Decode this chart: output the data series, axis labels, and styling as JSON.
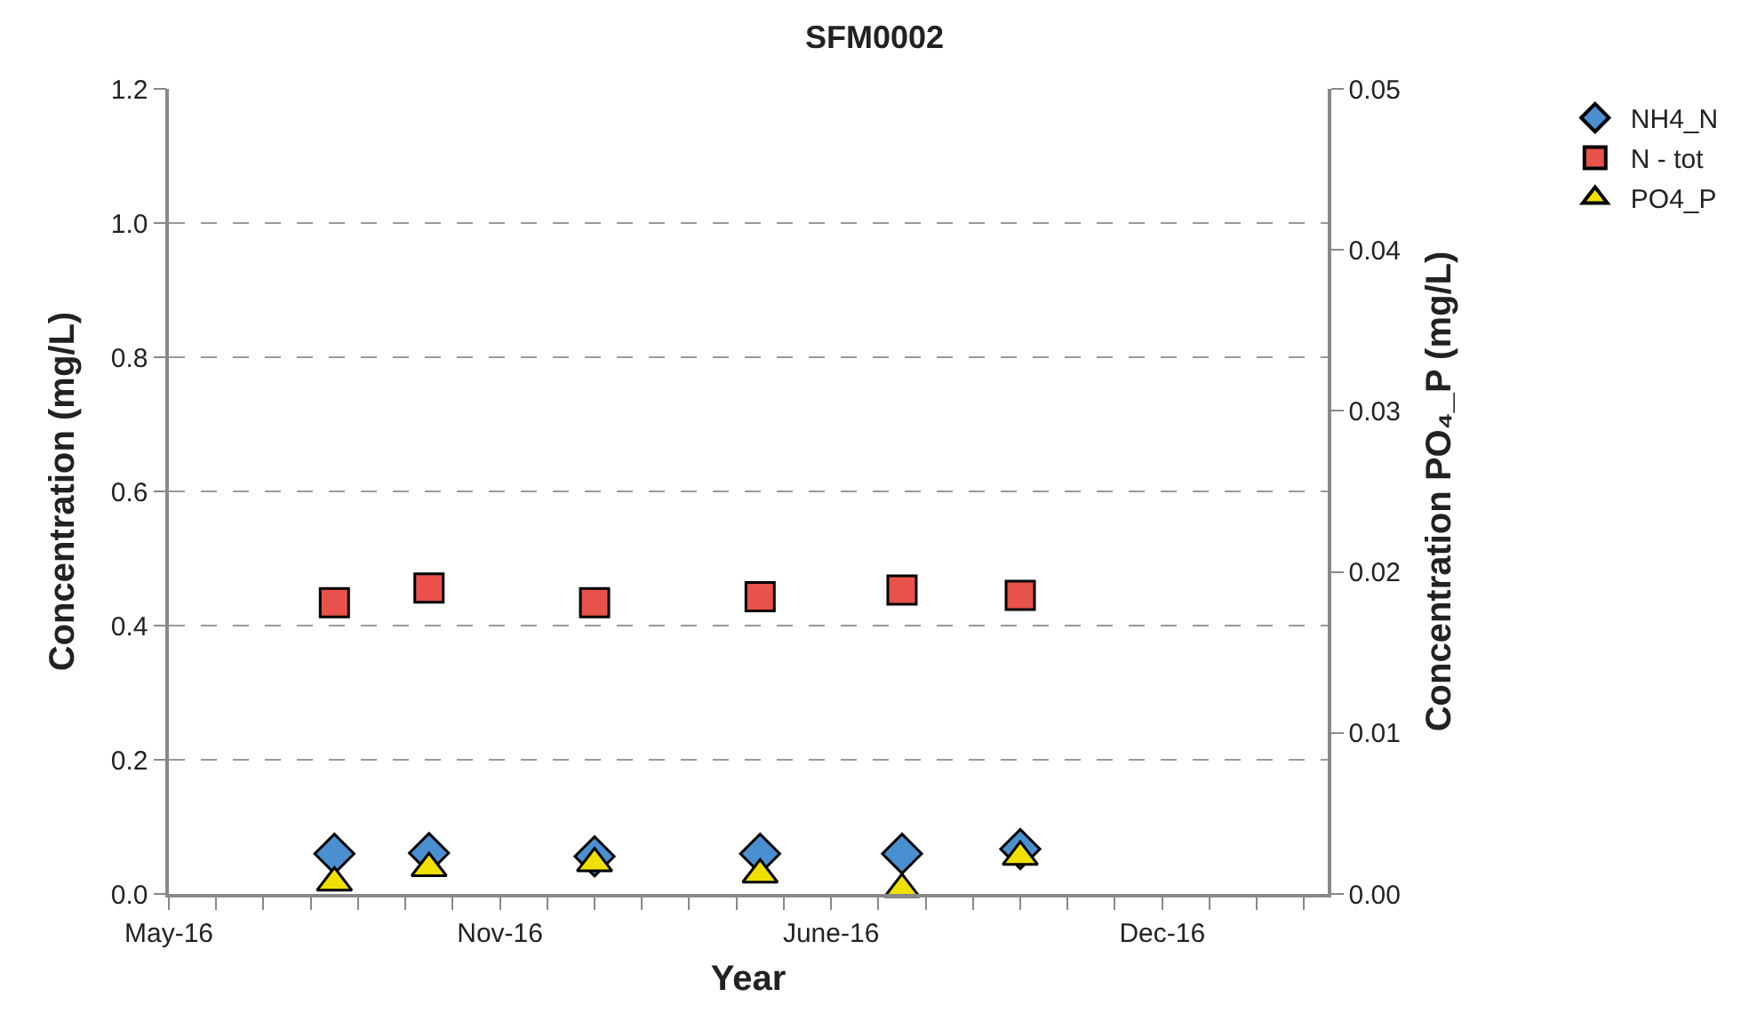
{
  "chart_data": {
    "type": "scatter",
    "title": "SFM0002",
    "xlabel": "Year",
    "ylabel": "Concentration (mg/L)",
    "y2label": "Concentration PO₄_P (mg/L)",
    "categories": [
      "May-16",
      null,
      null,
      null,
      null,
      null,
      null,
      null,
      null,
      null,
      null,
      null,
      null,
      null,
      "Nov-16",
      null,
      null,
      null,
      null,
      null,
      null,
      null,
      null,
      null,
      null,
      null,
      null,
      null,
      "June-16",
      null,
      null,
      null,
      null,
      null,
      null,
      null,
      null,
      null,
      null,
      null,
      null,
      null,
      "Dec-16",
      null,
      null,
      null,
      null,
      null,
      null,
      null
    ],
    "ylim": [
      0,
      1.2
    ],
    "yticks": [
      {
        "value": 0,
        "label": "0.0"
      },
      0.2,
      0.4,
      0.6,
      0.8,
      {
        "value": 1,
        "label": "1.0"
      },
      1.2
    ],
    "y2lim": [
      0,
      0.05
    ],
    "y2ticks": [
      {
        "value": 0,
        "label": "0.00"
      },
      0.01,
      0.02,
      0.03,
      0.04,
      0.05
    ],
    "grid": "y",
    "legend": "top right",
    "series": [
      {
        "name": "NH4_N",
        "color": "#4a90d0",
        "marker": "diamond",
        "values": [
          null,
          null,
          null,
          null,
          null,
          null,
          null,
          0.06,
          null,
          null,
          null,
          0.061,
          null,
          null,
          null,
          null,
          null,
          null,
          0.056,
          null,
          null,
          null,
          null,
          null,
          null,
          0.06,
          null,
          null,
          null,
          null,
          null,
          0.06,
          null,
          null,
          null,
          null,
          0.067,
          null,
          null,
          null,
          null,
          null,
          null,
          null,
          null,
          null,
          null,
          null,
          null,
          null
        ]
      },
      {
        "name": "N - tot",
        "color": "#e8524a",
        "marker": "square",
        "values": [
          null,
          null,
          null,
          null,
          null,
          null,
          null,
          0.434,
          null,
          null,
          null,
          0.456,
          null,
          null,
          null,
          null,
          null,
          null,
          0.434,
          null,
          null,
          null,
          null,
          null,
          null,
          0.443,
          null,
          null,
          null,
          null,
          null,
          0.453,
          null,
          null,
          null,
          null,
          0.445,
          null,
          null,
          null,
          null,
          null,
          null,
          null,
          null,
          null,
          null,
          null,
          null,
          null
        ]
      },
      {
        "name": "PO4_P",
        "color": "#f0e000",
        "marker": "triangle",
        "axis": "y2",
        "values": [
          null,
          null,
          null,
          null,
          null,
          null,
          null,
          0.0007,
          null,
          null,
          null,
          0.0016,
          null,
          null,
          null,
          null,
          null,
          null,
          0.0019,
          null,
          null,
          null,
          null,
          null,
          null,
          0.0012,
          null,
          null,
          null,
          null,
          null,
          0.0003,
          null,
          null,
          null,
          null,
          0.0023,
          null,
          null,
          null,
          null,
          null,
          null,
          null,
          null,
          null,
          null,
          null,
          null,
          null
        ]
      }
    ]
  }
}
